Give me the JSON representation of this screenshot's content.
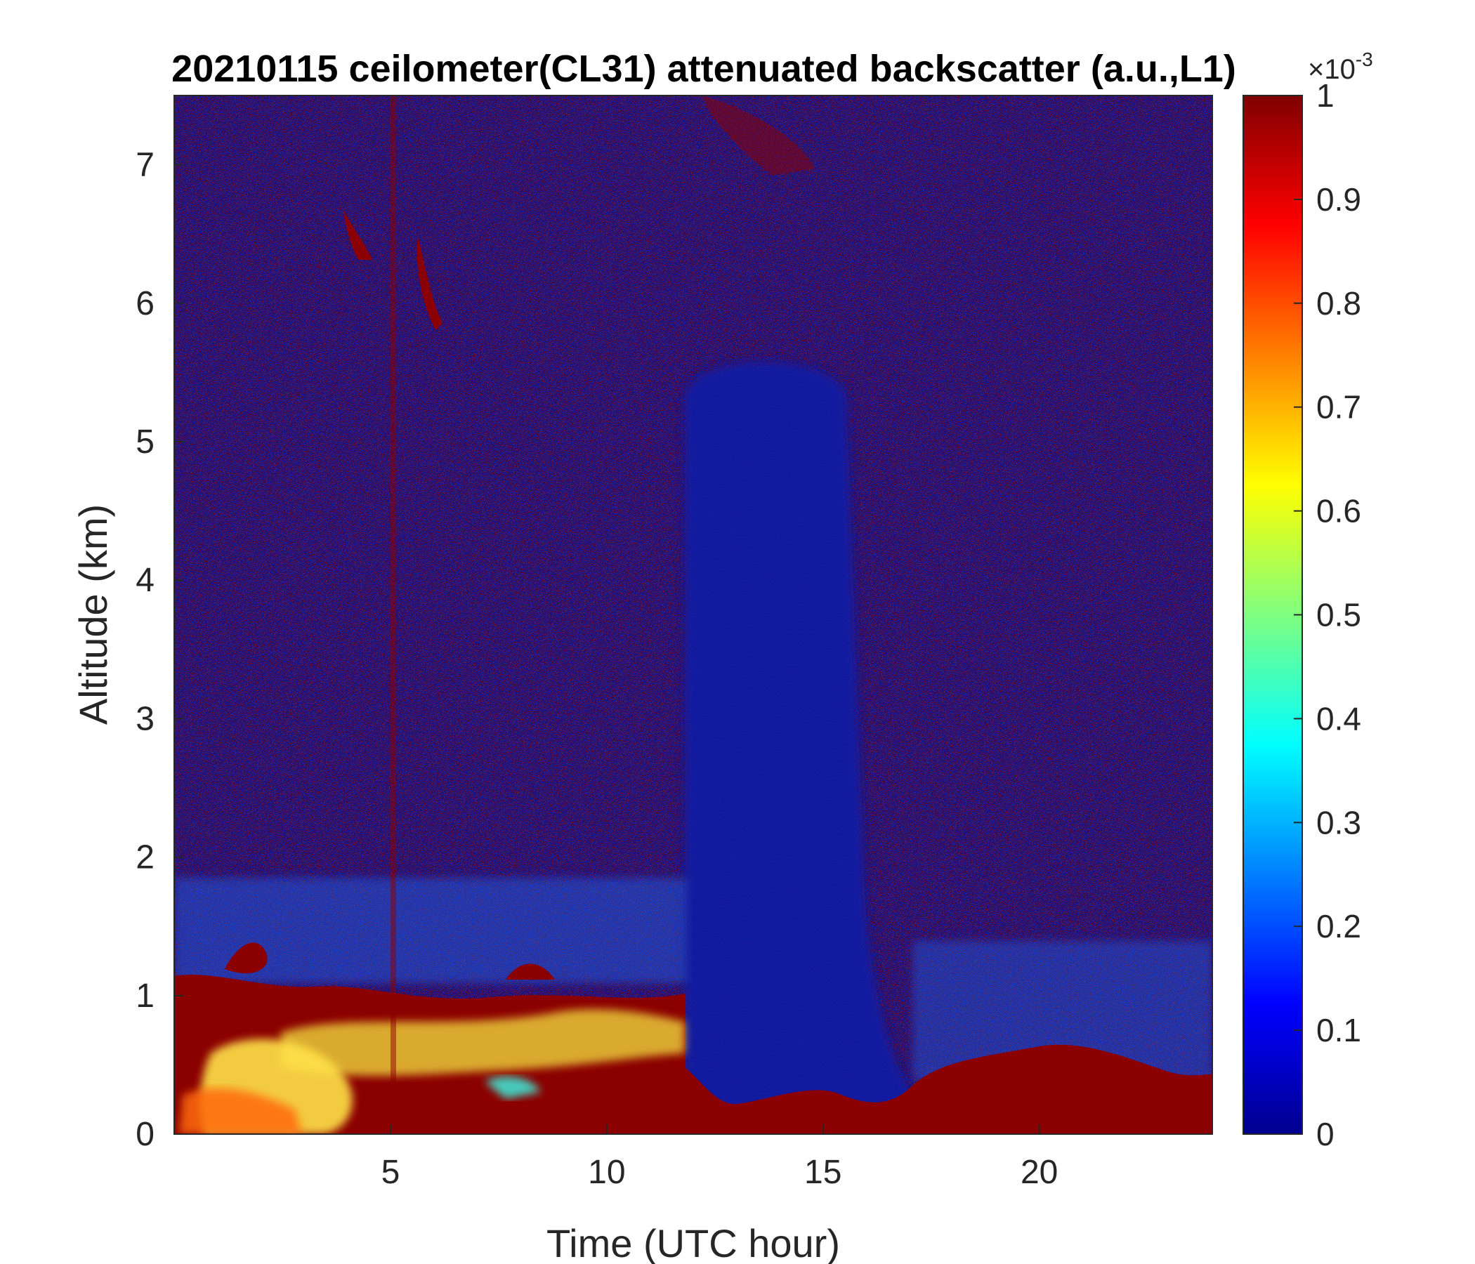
{
  "chart_data": {
    "type": "heatmap",
    "title": "20210115 ceilometer(CL31) attenuated backscatter (a.u.,L1)",
    "xlabel": "Time (UTC hour)",
    "ylabel": "Altitude (km)",
    "xlim": [
      0,
      24
    ],
    "ylim": [
      0,
      7.5
    ],
    "xticks": [
      "5",
      "10",
      "15",
      "20"
    ],
    "xtick_values": [
      5,
      10,
      15,
      20
    ],
    "yticks": [
      "0",
      "1",
      "2",
      "3",
      "4",
      "5",
      "6",
      "7"
    ],
    "ytick_values": [
      0,
      1,
      2,
      3,
      4,
      5,
      6,
      7
    ],
    "colorbar": {
      "colormap": "jet",
      "range": [
        0,
        1
      ],
      "multiplier": "×10",
      "exponent": "-3",
      "ticks": [
        "0",
        "0.1",
        "0.2",
        "0.3",
        "0.4",
        "0.5",
        "0.6",
        "0.7",
        "0.8",
        "0.9",
        "1"
      ],
      "tick_values": [
        0,
        0.1,
        0.2,
        0.3,
        0.4,
        0.5,
        0.6,
        0.7,
        0.8,
        0.9,
        1
      ]
    },
    "features": [
      {
        "kind": "surface-layer",
        "description": "saturated backscatter near ground",
        "x": [
          0,
          24
        ],
        "top_km": [
          0.4,
          0.3
        ]
      },
      {
        "kind": "aerosol-layer",
        "x": [
          0,
          11.8
        ],
        "top_km": 1.1,
        "value_range": [
          0.5,
          1
        ]
      },
      {
        "kind": "low-signal-gap",
        "x": [
          11.8,
          17
        ],
        "bottom_km": 0.3
      }
    ]
  }
}
